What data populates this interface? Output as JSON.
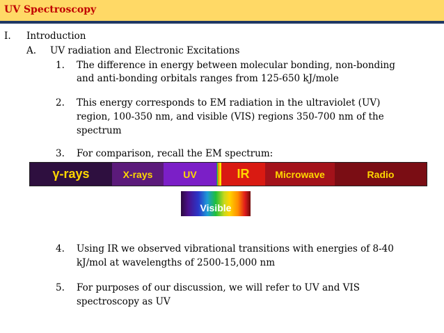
{
  "header": {
    "title": "UV Spectroscopy"
  },
  "outline": {
    "section_num": "I.",
    "section_title": "Introduction",
    "sub_num": "A.",
    "sub_title": "UV radiation and Electronic Excitations",
    "items": [
      {
        "num": "1.",
        "lines": [
          "The difference in energy between molecular bonding, non-bonding",
          "and anti-bonding orbitals ranges from 125-650 kJ/mole"
        ]
      },
      {
        "num": "2.",
        "lines": [
          "This energy corresponds to EM radiation in the ultraviolet (UV)",
          "region, 100-350 nm, and visible (VIS) regions 350-700 nm of the",
          "spectrum"
        ]
      },
      {
        "num": "3.",
        "lines": [
          "For comparison, recall the EM spectrum:"
        ]
      },
      {
        "num": "4.",
        "lines": [
          "Using IR we observed vibrational transitions with energies of 8-40",
          "kJ/mol at wavelengths of 2500-15,000 nm"
        ]
      },
      {
        "num": "5.",
        "lines": [
          "For purposes of our discussion, we will refer to UV and VIS",
          "spectroscopy as UV"
        ]
      }
    ]
  },
  "spectrum": {
    "regions": [
      "γ-rays",
      "X-rays",
      "UV",
      "IR",
      "Microwave",
      "Radio"
    ],
    "visible_label": "Visible",
    "colors": {
      "gamma": "#2E0F3F",
      "xray": "#5B1A7A",
      "uv": "#7B1FC7",
      "ir": "#D91A12",
      "microwave": "#A3121A",
      "radio": "#7A0D14",
      "label_yellow": "#FFD700"
    }
  }
}
